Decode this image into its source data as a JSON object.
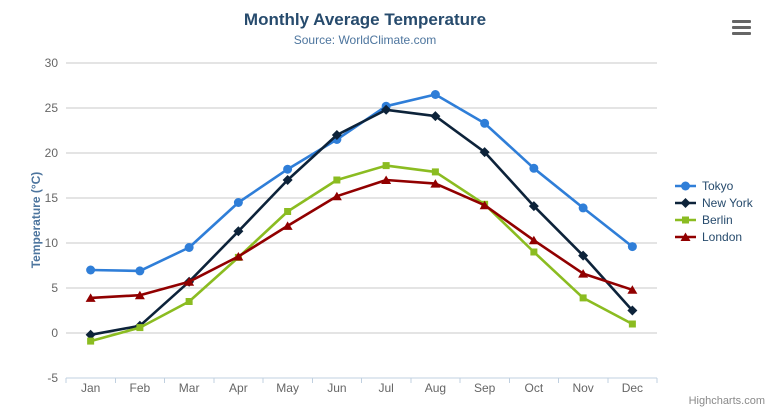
{
  "header": {
    "title": "Monthly Average Temperature",
    "subtitle": "Source: WorldClimate.com"
  },
  "credit": "Highcharts.com",
  "icons": {
    "context_menu": "hamburger-menu-icon"
  },
  "colors": {
    "title": "#274b6d",
    "subtitle": "#4d759e",
    "axis_title": "#4d759e",
    "tick_label": "#666666",
    "grid_line": "#c8c8c8",
    "axis_line": "#c0d0e0",
    "legend_text": "#274b6d",
    "credit_text": "#8a8a8a",
    "menu_icon": "#666666"
  },
  "chart_data": {
    "type": "line",
    "title": "Monthly Average Temperature",
    "subtitle": "Source: WorldClimate.com",
    "xlabel": "",
    "ylabel": "Temperature (°C)",
    "ylim": [
      -5,
      30
    ],
    "ytick_step": 5,
    "yticks": [
      -5,
      0,
      5,
      10,
      15,
      20,
      25,
      30
    ],
    "grid": true,
    "legend_position": "right",
    "categories": [
      "Jan",
      "Feb",
      "Mar",
      "Apr",
      "May",
      "Jun",
      "Jul",
      "Aug",
      "Sep",
      "Oct",
      "Nov",
      "Dec"
    ],
    "series": [
      {
        "name": "Tokyo",
        "color": "#2f7ed8",
        "marker": "circle",
        "values": [
          7.0,
          6.9,
          9.5,
          14.5,
          18.2,
          21.5,
          25.2,
          26.5,
          23.3,
          18.3,
          13.9,
          9.6
        ]
      },
      {
        "name": "New York",
        "color": "#0d233a",
        "marker": "diamond",
        "values": [
          -0.2,
          0.8,
          5.7,
          11.3,
          17.0,
          22.0,
          24.8,
          24.1,
          20.1,
          14.1,
          8.6,
          2.5
        ]
      },
      {
        "name": "Berlin",
        "color": "#8bbc21",
        "marker": "square",
        "values": [
          -0.9,
          0.6,
          3.5,
          8.4,
          13.5,
          17.0,
          18.6,
          17.9,
          14.3,
          9.0,
          3.9,
          1.0
        ]
      },
      {
        "name": "London",
        "color": "#910000",
        "marker": "triangle",
        "values": [
          3.9,
          4.2,
          5.7,
          8.5,
          11.9,
          15.2,
          17.0,
          16.6,
          14.2,
          10.3,
          6.6,
          4.8
        ]
      }
    ]
  }
}
